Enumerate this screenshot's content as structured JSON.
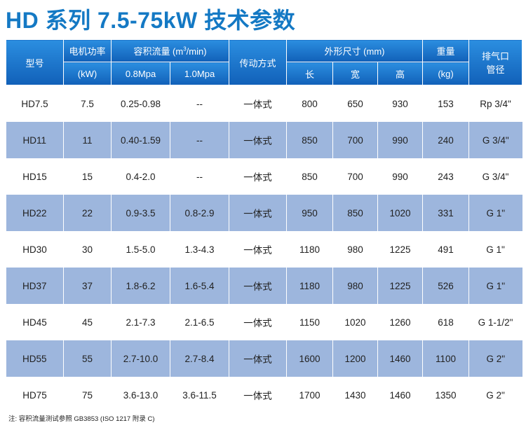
{
  "title": "HD 系列 7.5-75kW 技术参数",
  "header": {
    "model": "型号",
    "power": "电机功率",
    "power_unit": "(kW)",
    "flow_prefix": "容积流量 (m",
    "flow_sup": "3",
    "flow_suffix": "/min)",
    "flow_08": "0.8Mpa",
    "flow_10": "1.0Mpa",
    "drive": "传动方式",
    "dimensions": "外形尺寸 (mm)",
    "length": "长",
    "width": "宽",
    "height": "高",
    "weight": "重量",
    "weight_unit": "(kg)",
    "outlet_line1": "排气口",
    "outlet_line2": "管径"
  },
  "rows": [
    {
      "model": "HD7.5",
      "power": "7.5",
      "flow08": "0.25-0.98",
      "flow10": "--",
      "drive": "一体式",
      "length": "800",
      "width": "650",
      "height": "930",
      "weight": "153",
      "outlet": "Rp 3/4\""
    },
    {
      "model": "HD11",
      "power": "11",
      "flow08": "0.40-1.59",
      "flow10": "--",
      "drive": "一体式",
      "length": "850",
      "width": "700",
      "height": "990",
      "weight": "240",
      "outlet": "G 3/4\""
    },
    {
      "model": "HD15",
      "power": "15",
      "flow08": "0.4-2.0",
      "flow10": "--",
      "drive": "一体式",
      "length": "850",
      "width": "700",
      "height": "990",
      "weight": "243",
      "outlet": "G 3/4\""
    },
    {
      "model": "HD22",
      "power": "22",
      "flow08": "0.9-3.5",
      "flow10": "0.8-2.9",
      "drive": "一体式",
      "length": "950",
      "width": "850",
      "height": "1020",
      "weight": "331",
      "outlet": "G 1\""
    },
    {
      "model": "HD30",
      "power": "30",
      "flow08": "1.5-5.0",
      "flow10": "1.3-4.3",
      "drive": "一体式",
      "length": "1180",
      "width": "980",
      "height": "1225",
      "weight": "491",
      "outlet": "G 1\""
    },
    {
      "model": "HD37",
      "power": "37",
      "flow08": "1.8-6.2",
      "flow10": "1.6-5.4",
      "drive": "一体式",
      "length": "1180",
      "width": "980",
      "height": "1225",
      "weight": "526",
      "outlet": "G 1\""
    },
    {
      "model": "HD45",
      "power": "45",
      "flow08": "2.1-7.3",
      "flow10": "2.1-6.5",
      "drive": "一体式",
      "length": "1150",
      "width": "1020",
      "height": "1260",
      "weight": "618",
      "outlet": "G 1-1/2\""
    },
    {
      "model": "HD55",
      "power": "55",
      "flow08": "2.7-10.0",
      "flow10": "2.7-8.4",
      "drive": "一体式",
      "length": "1600",
      "width": "1200",
      "height": "1460",
      "weight": "1100",
      "outlet": "G 2\""
    },
    {
      "model": "HD75",
      "power": "75",
      "flow08": "3.6-13.0",
      "flow10": "3.6-11.5",
      "drive": "一体式",
      "length": "1700",
      "width": "1430",
      "height": "1460",
      "weight": "1350",
      "outlet": "G 2\""
    }
  ],
  "note": "注: 容积流量测试参照 GB3853 (ISO 1217 附录 C)",
  "colors": {
    "title": "#1479c4",
    "header": "#1a6fc4",
    "alt_row": "#9db6dd"
  }
}
